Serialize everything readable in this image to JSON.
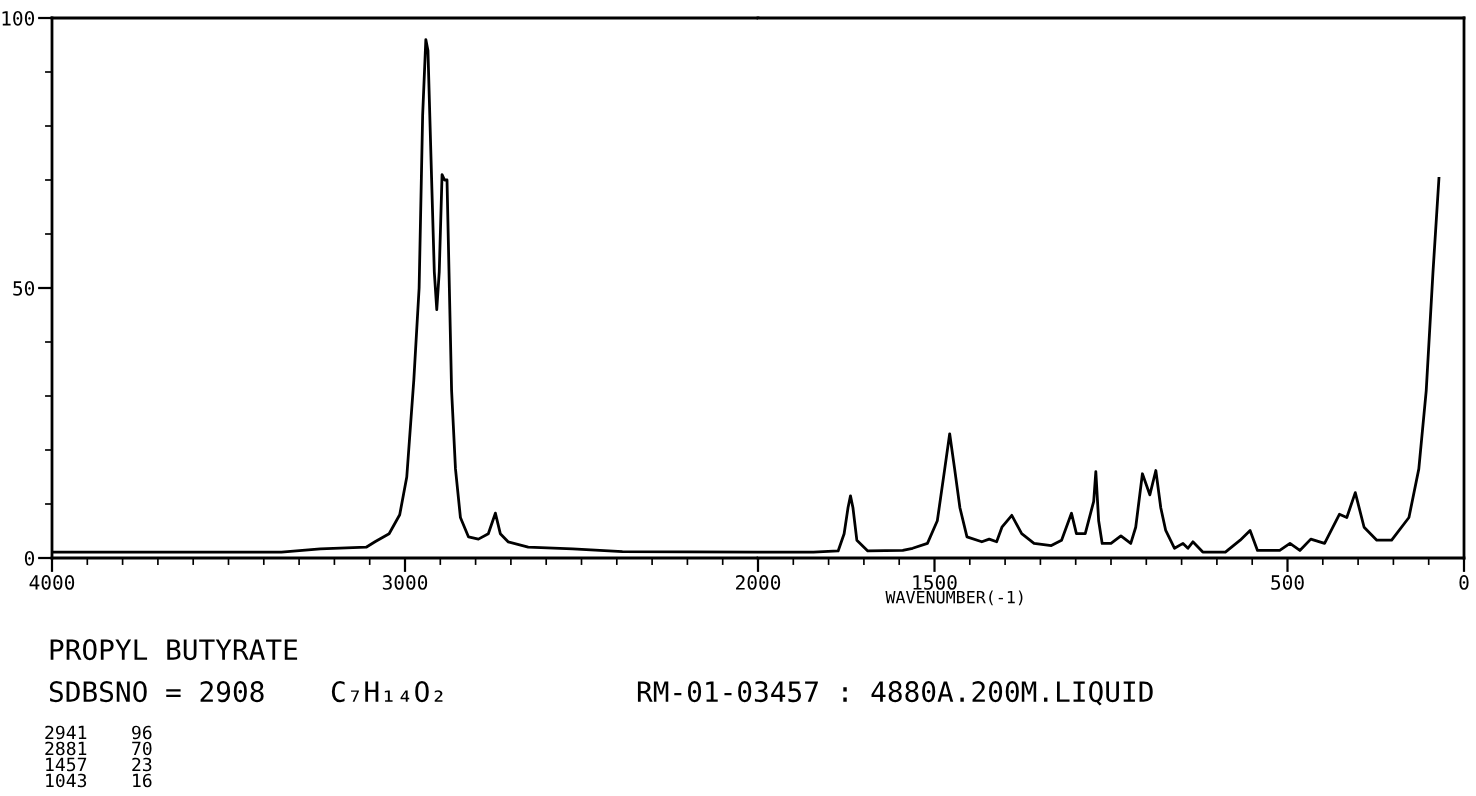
{
  "chart_data": [
    {
      "type": "line",
      "title": "PROPYL BUTYRATE",
      "xlim": [
        4000,
        2000
      ],
      "ylim": [
        0,
        100
      ],
      "xticks": [
        4000,
        3000,
        2000
      ],
      "yticks": [
        0,
        50,
        100
      ],
      "grid": false,
      "legend": false,
      "marker": "none",
      "line_style": "solid",
      "annotations": [
        "SDBSNO = 2908",
        "C₇H₁₄O₂",
        "RM-01-03457 : 4880A.200M.LIQUID",
        "2941    96",
        "2881    70",
        "1457    23",
        "1043    16"
      ],
      "series": [
        {
          "color": "#000000",
          "x": [
            4000,
            3350,
            3240,
            3110,
            3085,
            3045,
            3015,
            2995,
            2975,
            2960,
            2950,
            2941,
            2935,
            2925,
            2917,
            2910,
            2903,
            2895,
            2888,
            2881,
            2868,
            2857,
            2843,
            2820,
            2792,
            2764,
            2744,
            2730,
            2708,
            2651,
            2525,
            2384,
            2000
          ],
          "values": [
            1.1,
            1.1,
            1.7,
            2,
            3,
            4.5,
            8,
            15,
            33,
            50,
            82,
            96,
            94,
            71,
            53,
            46,
            53,
            71,
            70,
            70,
            31,
            16.5,
            7.5,
            3.9,
            3.5,
            4.5,
            8.3,
            4.5,
            3,
            2,
            1.7,
            1.2,
            1.1
          ]
        }
      ]
    },
    {
      "type": "line",
      "xlabel": "WAVENUMBER(-1)",
      "xlim": [
        2000,
        0
      ],
      "ylim": [
        0,
        100
      ],
      "xticks": [
        1500,
        500,
        0
      ],
      "yticks": [
        0,
        50,
        100
      ],
      "tick_labels": "x",
      "grid": false,
      "legend": false,
      "marker": "none",
      "line_style": "solid",
      "series": [
        {
          "color": "#000000",
          "x": [
            2000,
            1843,
            1773,
            1756,
            1745,
            1738,
            1731,
            1720,
            1689,
            1590,
            1562,
            1520,
            1492,
            1471,
            1457,
            1443,
            1428,
            1408,
            1366,
            1345,
            1324,
            1309,
            1281,
            1253,
            1218,
            1169,
            1140,
            1112,
            1098,
            1073,
            1049,
            1043,
            1035,
            1025,
            1000,
            972,
            944,
            930,
            911,
            890,
            873,
            859,
            845,
            820,
            796,
            782,
            768,
            740,
            676,
            634,
            606,
            585,
            522,
            493,
            465,
            434,
            395,
            353,
            332,
            308,
            283,
            247,
            205,
            156,
            128,
            107,
            88,
            71
          ],
          "values": [
            1.1,
            1.1,
            1.3,
            4.5,
            9.3,
            11.5,
            9.3,
            3.3,
            1.3,
            1.4,
            1.8,
            2.7,
            6.9,
            16.5,
            23,
            16.5,
            9.3,
            3.9,
            3,
            3.5,
            3,
            5.7,
            7.9,
            4.5,
            2.7,
            2.3,
            3.3,
            8.3,
            4.5,
            4.5,
            10.5,
            16,
            6.9,
            2.7,
            2.7,
            4.1,
            2.7,
            5.7,
            15.6,
            11.7,
            16.2,
            9.3,
            5.1,
            1.8,
            2.7,
            1.8,
            3,
            1.1,
            1.1,
            3.3,
            5.1,
            1.4,
            1.4,
            2.7,
            1.4,
            3.5,
            2.7,
            8.1,
            7.5,
            12.1,
            5.7,
            3.3,
            3.3,
            7.5,
            16.5,
            31,
            52.8,
            70.3
          ]
        }
      ]
    }
  ]
}
